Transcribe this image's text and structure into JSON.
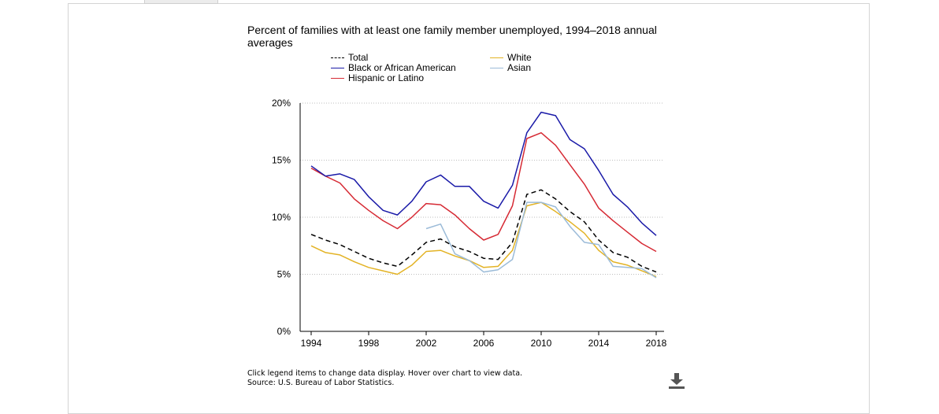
{
  "chart_data": {
    "type": "line",
    "title": "Percent of families with at least one family member unemployed, 1994–2018 annual averages",
    "ylim": [
      0,
      20
    ],
    "xlim": [
      1994,
      2018
    ],
    "yticks": [
      {
        "value": 0,
        "label": "0%"
      },
      {
        "value": 5,
        "label": "5%"
      },
      {
        "value": 10,
        "label": "10%"
      },
      {
        "value": 15,
        "label": "15%"
      },
      {
        "value": 20,
        "label": "20%"
      }
    ],
    "xticks": [
      {
        "value": 1994,
        "label": "1994"
      },
      {
        "value": 1998,
        "label": "1998"
      },
      {
        "value": 2002,
        "label": "2002"
      },
      {
        "value": 2006,
        "label": "2006"
      },
      {
        "value": 2010,
        "label": "2010"
      },
      {
        "value": 2014,
        "label": "2014"
      },
      {
        "value": 2018,
        "label": "2018"
      }
    ],
    "grid": "horizontal dotted",
    "legend": "top",
    "series": [
      {
        "name": "Total",
        "color": "#000000",
        "dashed": true,
        "x": [
          1994,
          1995,
          1996,
          1997,
          1998,
          1999,
          2000,
          2001,
          2002,
          2003,
          2004,
          2005,
          2006,
          2007,
          2008,
          2009,
          2010,
          2011,
          2012,
          2013,
          2014,
          2015,
          2016,
          2017,
          2018
        ],
        "values": [
          8.5,
          8.0,
          7.6,
          7.0,
          6.4,
          6.0,
          5.7,
          6.7,
          7.8,
          8.1,
          7.4,
          7.0,
          6.4,
          6.3,
          7.8,
          12.0,
          12.4,
          11.6,
          10.5,
          9.6,
          8.0,
          6.9,
          6.5,
          5.7,
          5.2
        ]
      },
      {
        "name": "Black or African American",
        "color": "#1a1aa8",
        "dashed": false,
        "x": [
          1994,
          1995,
          1996,
          1997,
          1998,
          1999,
          2000,
          2001,
          2002,
          2003,
          2004,
          2005,
          2006,
          2007,
          2008,
          2009,
          2010,
          2011,
          2012,
          2013,
          2014,
          2015,
          2016,
          2017,
          2018
        ],
        "values": [
          14.5,
          13.6,
          13.8,
          13.3,
          11.8,
          10.6,
          10.2,
          11.4,
          13.1,
          13.7,
          12.7,
          12.7,
          11.4,
          10.8,
          12.8,
          17.4,
          19.2,
          18.9,
          16.8,
          16.0,
          14.1,
          12.0,
          10.9,
          9.5,
          8.4
        ]
      },
      {
        "name": "Hispanic or Latino",
        "color": "#d62a34",
        "dashed": false,
        "x": [
          1994,
          1995,
          1996,
          1997,
          1998,
          1999,
          2000,
          2001,
          2002,
          2003,
          2004,
          2005,
          2006,
          2007,
          2008,
          2009,
          2010,
          2011,
          2012,
          2013,
          2014,
          2015,
          2016,
          2017,
          2018
        ],
        "values": [
          14.3,
          13.6,
          13.0,
          11.6,
          10.6,
          9.7,
          9.0,
          10.0,
          11.2,
          11.1,
          10.2,
          9.0,
          8.0,
          8.5,
          11.0,
          16.9,
          17.4,
          16.3,
          14.6,
          12.9,
          10.8,
          9.7,
          8.7,
          7.7,
          7.0
        ]
      },
      {
        "name": "White",
        "color": "#e3b325",
        "dashed": false,
        "x": [
          1994,
          1995,
          1996,
          1997,
          1998,
          1999,
          2000,
          2001,
          2002,
          2003,
          2004,
          2005,
          2006,
          2007,
          2008,
          2009,
          2010,
          2011,
          2012,
          2013,
          2014,
          2015,
          2016,
          2017,
          2018
        ],
        "values": [
          7.5,
          6.9,
          6.7,
          6.1,
          5.6,
          5.3,
          5.0,
          5.8,
          7.0,
          7.1,
          6.6,
          6.2,
          5.6,
          5.7,
          7.1,
          11.0,
          11.3,
          10.5,
          9.6,
          8.6,
          7.1,
          6.1,
          5.8,
          5.3,
          4.8
        ]
      },
      {
        "name": "Asian",
        "color": "#9bbbd8",
        "dashed": false,
        "x": [
          2002,
          2003,
          2004,
          2005,
          2006,
          2007,
          2008,
          2009,
          2010,
          2011,
          2012,
          2013,
          2014,
          2015,
          2016,
          2017,
          2018
        ],
        "values": [
          9.0,
          9.4,
          6.8,
          6.2,
          5.2,
          5.4,
          6.3,
          11.3,
          11.3,
          10.9,
          9.2,
          7.8,
          7.6,
          5.7,
          5.6,
          5.5,
          4.7
        ]
      }
    ]
  },
  "footnote": {
    "line1": "Click legend items to change data display. Hover over chart to view data.",
    "line2": "Source: U.S. Bureau of Labor Statistics."
  },
  "download": {
    "icon": "download-icon"
  }
}
